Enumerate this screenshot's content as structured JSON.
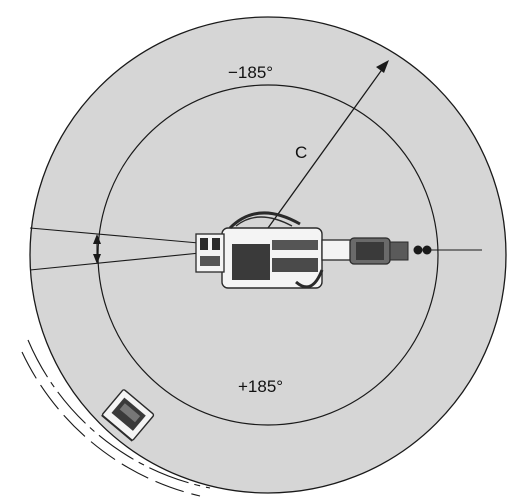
{
  "labels": {
    "minus_angle": "−185°",
    "plus_angle": "+185°",
    "radius": "C"
  },
  "colors": {
    "envelope_fill": "#d6d6d6",
    "line": "#1a1a1a",
    "robot_dark": "#2a2a2a",
    "robot_light": "#f4f4f4"
  },
  "icons": {
    "robot": "industrial-robot-top-view",
    "controller": "controller-cabinet-top-view"
  }
}
